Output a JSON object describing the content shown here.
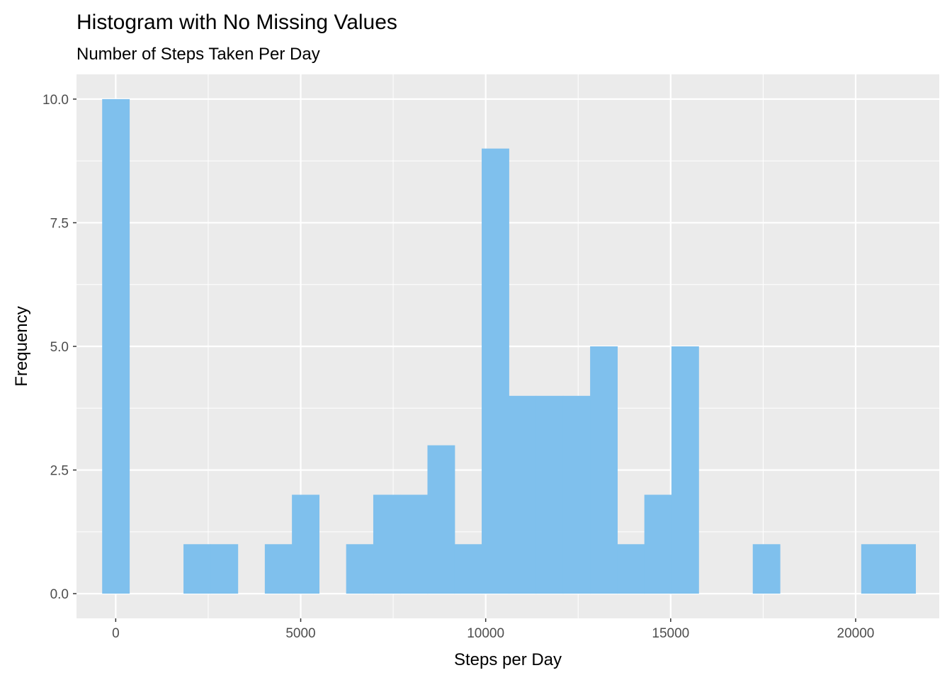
{
  "chart_data": {
    "type": "bar",
    "title": "Histogram with No Missing Values",
    "subtitle": "Number of Steps Taken Per Day",
    "xlabel": "Steps per Day",
    "ylabel": "Frequency",
    "xlim": [
      -1060,
      22260
    ],
    "ylim": [
      -0.5,
      10.5
    ],
    "x_ticks": [
      0,
      5000,
      10000,
      15000,
      20000
    ],
    "x_tick_labels": [
      "0",
      "5000",
      "10000",
      "15000",
      "20000"
    ],
    "y_ticks": [
      0,
      2.5,
      5,
      7.5,
      10
    ],
    "y_tick_labels": [
      "0.0",
      "2.5",
      "5.0",
      "7.5",
      "10.0"
    ],
    "bin_width": 732.75,
    "bins": [
      {
        "x": 0,
        "count": 10
      },
      {
        "x": 732.75,
        "count": 0
      },
      {
        "x": 1465.5,
        "count": 0
      },
      {
        "x": 2198.25,
        "count": 1
      },
      {
        "x": 2931,
        "count": 1
      },
      {
        "x": 3663.75,
        "count": 0
      },
      {
        "x": 4396.5,
        "count": 1
      },
      {
        "x": 5129.25,
        "count": 2
      },
      {
        "x": 5862,
        "count": 0
      },
      {
        "x": 6594.75,
        "count": 1
      },
      {
        "x": 7327.5,
        "count": 2
      },
      {
        "x": 8060.25,
        "count": 2
      },
      {
        "x": 8793,
        "count": 3
      },
      {
        "x": 9525.75,
        "count": 1
      },
      {
        "x": 10258.5,
        "count": 9
      },
      {
        "x": 10991.25,
        "count": 4
      },
      {
        "x": 11724,
        "count": 4
      },
      {
        "x": 12456.75,
        "count": 4
      },
      {
        "x": 13189.5,
        "count": 5
      },
      {
        "x": 13922.25,
        "count": 1
      },
      {
        "x": 14655,
        "count": 2
      },
      {
        "x": 15387.75,
        "count": 5
      },
      {
        "x": 16120.5,
        "count": 0
      },
      {
        "x": 16853.25,
        "count": 0
      },
      {
        "x": 17586,
        "count": 1
      },
      {
        "x": 18318.75,
        "count": 0
      },
      {
        "x": 19051.5,
        "count": 0
      },
      {
        "x": 19784.25,
        "count": 0
      },
      {
        "x": 20517,
        "count": 1
      },
      {
        "x": 21249.75,
        "count": 1
      }
    ],
    "fill_color": "#7fc0ed",
    "panel_background": "#ebebeb",
    "grid": true
  }
}
